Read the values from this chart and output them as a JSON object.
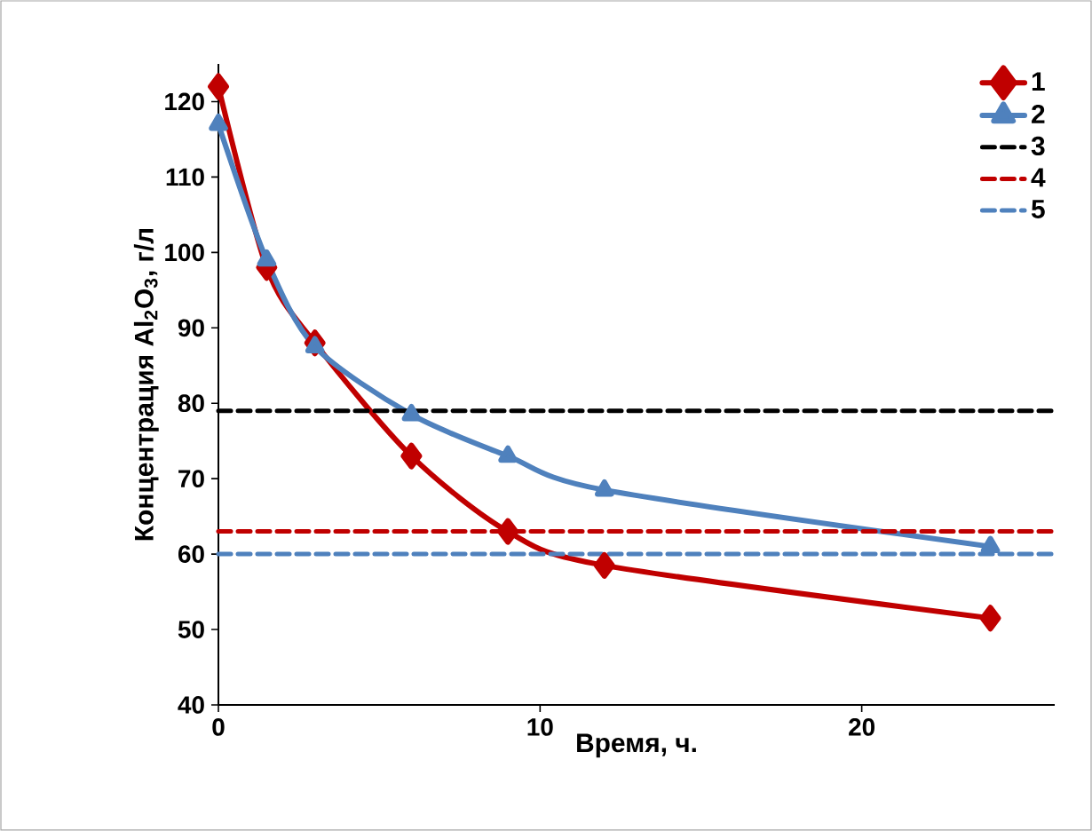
{
  "chart_data": {
    "type": "line",
    "xlabel": "Время, ч.",
    "ylabel": "Концентрация Al$_{2}$O$_{3}$, г/л",
    "xlim": [
      0,
      26
    ],
    "xticks": [
      0,
      10,
      20
    ],
    "ylim": [
      40,
      125
    ],
    "yticks": [
      40,
      50,
      60,
      70,
      80,
      90,
      100,
      110,
      120
    ],
    "grid": false,
    "legend": "top right",
    "series": [
      {
        "name": "1",
        "color": "#c00000",
        "marker": "diamond",
        "line_style": "solid",
        "x": [
          0,
          1.5,
          3,
          6,
          9,
          12,
          24
        ],
        "values": [
          122,
          98,
          88,
          73,
          63,
          58.5,
          51.5
        ]
      },
      {
        "name": "2",
        "color": "#4f81bd",
        "marker": "triangle",
        "line_style": "solid",
        "x": [
          0,
          1.5,
          3,
          6,
          9,
          12,
          24
        ],
        "values": [
          117,
          99,
          87.5,
          78.5,
          73,
          68.5,
          61
        ]
      },
      {
        "name": "3",
        "color": "#000000",
        "marker": "none",
        "line_style": "dashed",
        "x": [
          0,
          26
        ],
        "values": [
          79,
          79
        ]
      },
      {
        "name": "4",
        "color": "#c00000",
        "marker": "none",
        "line_style": "dashed",
        "x": [
          0,
          26
        ],
        "values": [
          63,
          63
        ]
      },
      {
        "name": "5",
        "color": "#4f81bd",
        "marker": "none",
        "line_style": "dashed",
        "x": [
          0,
          26
        ],
        "values": [
          60,
          60
        ]
      }
    ]
  }
}
